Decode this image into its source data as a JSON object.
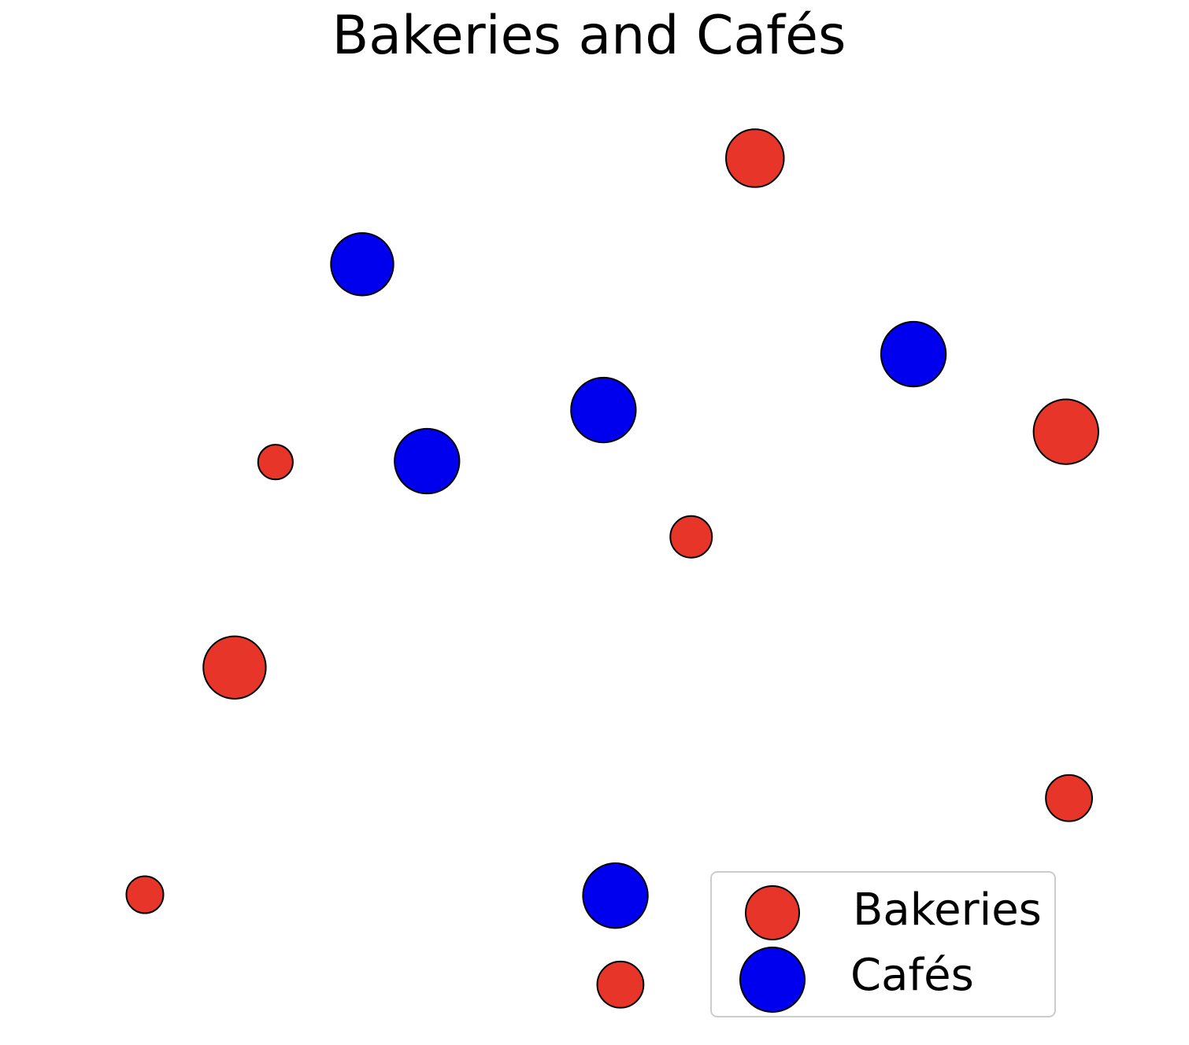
{
  "chart_data": {
    "type": "scatter",
    "title": "Bakeries and Cafés",
    "xlabel": "",
    "ylabel": "",
    "axes_visible": false,
    "grid": false,
    "legend_placement": "bottom-right",
    "xlim": [
      0,
      100
    ],
    "ylim": [
      0,
      100
    ],
    "series": [
      {
        "name": "Bakeries",
        "color": "#e8352a",
        "points": [
          {
            "x": 61.2,
            "y": 91.6,
            "size": 2.5
          },
          {
            "x": 13.1,
            "y": 59.5,
            "size": 1.5
          },
          {
            "x": 54.8,
            "y": 51.6,
            "size": 1.8
          },
          {
            "x": 92.4,
            "y": 62.7,
            "size": 2.8
          },
          {
            "x": 9.0,
            "y": 37.8,
            "size": 2.7
          },
          {
            "x": 92.7,
            "y": 24.0,
            "size": 2.0
          },
          {
            "x": 0.0,
            "y": 13.8,
            "size": 1.6
          },
          {
            "x": 47.7,
            "y": 4.3,
            "size": 2.0
          }
        ]
      },
      {
        "name": "Cafés",
        "color": "#0000ee",
        "points": [
          {
            "x": 21.8,
            "y": 80.4,
            "size": 2.7
          },
          {
            "x": 77.1,
            "y": 70.9,
            "size": 2.8
          },
          {
            "x": 46.0,
            "y": 65.0,
            "size": 2.8
          },
          {
            "x": 28.3,
            "y": 59.6,
            "size": 2.8
          },
          {
            "x": 47.2,
            "y": 13.7,
            "size": 2.8
          }
        ]
      }
    ]
  }
}
